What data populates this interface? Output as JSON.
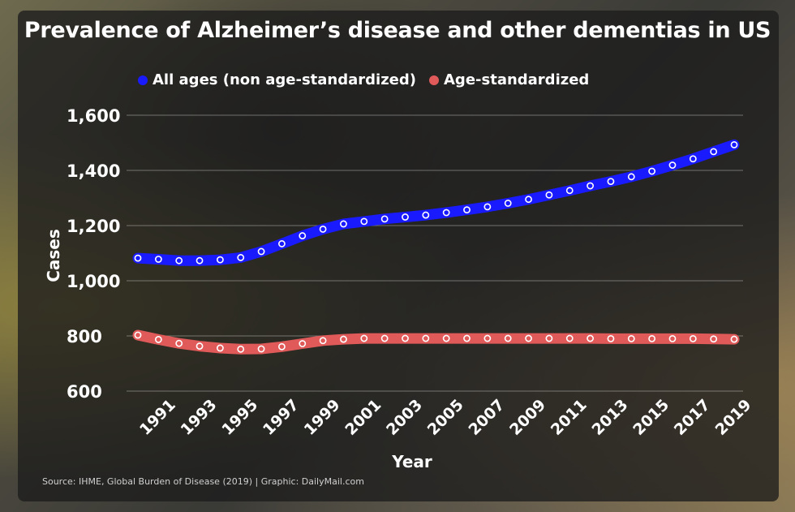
{
  "chart_data": {
    "type": "line",
    "title": "Prevalence of Alzheimer’s disease and other dementias in US",
    "xlabel": "Year",
    "ylabel": "Cases",
    "ylim": [
      600,
      1600
    ],
    "yticks": [
      "1,600",
      "1,400",
      "1,200",
      "1,000",
      "800",
      "600"
    ],
    "ytick_values": [
      1600,
      1400,
      1200,
      1000,
      800,
      600
    ],
    "x": [
      1990,
      1991,
      1992,
      1993,
      1994,
      1995,
      1996,
      1997,
      1998,
      1999,
      2000,
      2001,
      2002,
      2003,
      2004,
      2005,
      2006,
      2007,
      2008,
      2009,
      2010,
      2011,
      2012,
      2013,
      2014,
      2015,
      2016,
      2017,
      2018,
      2019
    ],
    "xtick_labels": [
      "1991",
      "1993",
      "1995",
      "1997",
      "1999",
      "2001",
      "2003",
      "2005",
      "2007",
      "2009",
      "2011",
      "2013",
      "2015",
      "2017",
      "2019"
    ],
    "series": [
      {
        "name": "All ages (non age-standardized)",
        "color": "#1a1aff",
        "values": [
          1082,
          1078,
          1073,
          1073,
          1076,
          1084,
          1106,
          1134,
          1163,
          1187,
          1206,
          1215,
          1224,
          1231,
          1238,
          1247,
          1257,
          1268,
          1281,
          1295,
          1311,
          1327,
          1344,
          1360,
          1377,
          1397,
          1419,
          1442,
          1468,
          1493
        ]
      },
      {
        "name": "Age-standardized",
        "color": "#e05a5a",
        "values": [
          803,
          787,
          773,
          763,
          756,
          752,
          753,
          761,
          772,
          783,
          788,
          791,
          791,
          791,
          791,
          791,
          791,
          791,
          791,
          791,
          791,
          791,
          791,
          790,
          790,
          790,
          790,
          790,
          789,
          788
        ]
      }
    ],
    "grid": true,
    "legend_position": "top-left"
  },
  "source_text": "Source: IHME, Global Burden of Disease (2019)  |  Graphic: DailyMail.com"
}
